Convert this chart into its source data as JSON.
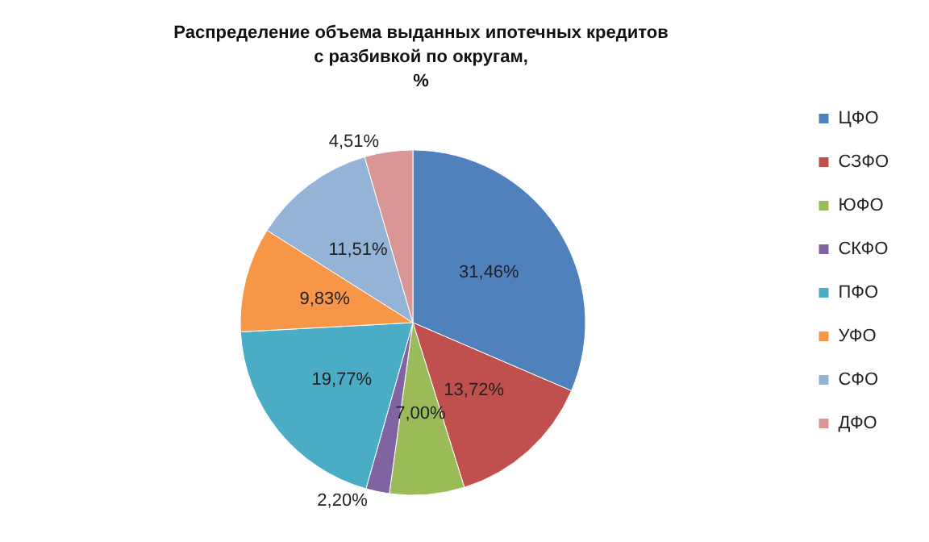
{
  "chart_data": {
    "type": "pie",
    "title": "Распределение объема выданных ипотечных кредитов\nс разбивкой по округам,\n%",
    "categories": [
      "ЦФО",
      "СЗФО",
      "ЮФО",
      "СКФО",
      "ПФО",
      "УФО",
      "СФО",
      "ДФО"
    ],
    "values": [
      31.46,
      13.72,
      7.0,
      2.2,
      19.77,
      9.83,
      11.51,
      4.51
    ],
    "colors": [
      "#4f81bd",
      "#c0504d",
      "#9bbb59",
      "#8064a2",
      "#4bacc6",
      "#f79646",
      "#95b3d7",
      "#d99694"
    ],
    "value_labels": [
      "31,46%",
      "13,72%",
      "7,00%",
      "2,20%",
      "19,77%",
      "9,83%",
      "11,51%",
      "4,51%"
    ],
    "legend": "right"
  }
}
